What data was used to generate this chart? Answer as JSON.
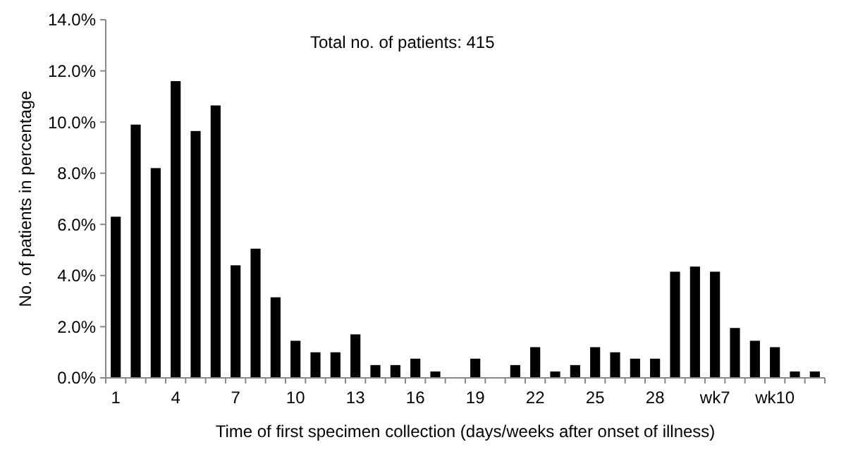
{
  "chart_data": {
    "type": "bar",
    "xlabel": "Time of first specimen collection (days/weeks after onset of illness)",
    "ylabel": "No. of patients in percentage",
    "annotations": [
      "Total no. of patients: 415"
    ],
    "categories": [
      "1",
      null,
      null,
      "4",
      null,
      null,
      "7",
      null,
      null,
      "10",
      null,
      null,
      "13",
      null,
      null,
      "16",
      null,
      null,
      "19",
      null,
      null,
      "22",
      null,
      null,
      "25",
      null,
      null,
      "28",
      null,
      null,
      "wk7",
      null,
      null,
      "wk10",
      null,
      null
    ],
    "values": [
      6.3,
      9.9,
      8.2,
      11.6,
      9.65,
      10.65,
      4.4,
      5.05,
      3.15,
      1.45,
      1.0,
      1.0,
      1.7,
      0.5,
      0.5,
      0.75,
      0.25,
      0,
      0.75,
      0,
      0.5,
      1.2,
      0.25,
      0.5,
      1.2,
      1.0,
      0.75,
      0.75,
      4.15,
      4.35,
      4.15,
      1.95,
      1.45,
      1.2,
      0.25,
      0.25
    ],
    "color": "#000000",
    "ylim": [
      0,
      14
    ],
    "yticks": [
      {
        "value": 0,
        "label": "0.0%"
      },
      {
        "value": 2,
        "label": "2.0%"
      },
      {
        "value": 4,
        "label": "4.0%"
      },
      {
        "value": 6,
        "label": "6.0%"
      },
      {
        "value": 8,
        "label": "8.0%"
      },
      {
        "value": 10,
        "label": "10.0%"
      },
      {
        "value": 12,
        "label": "12.0%"
      },
      {
        "value": 14,
        "label": "14.0%"
      }
    ],
    "grid": false
  }
}
